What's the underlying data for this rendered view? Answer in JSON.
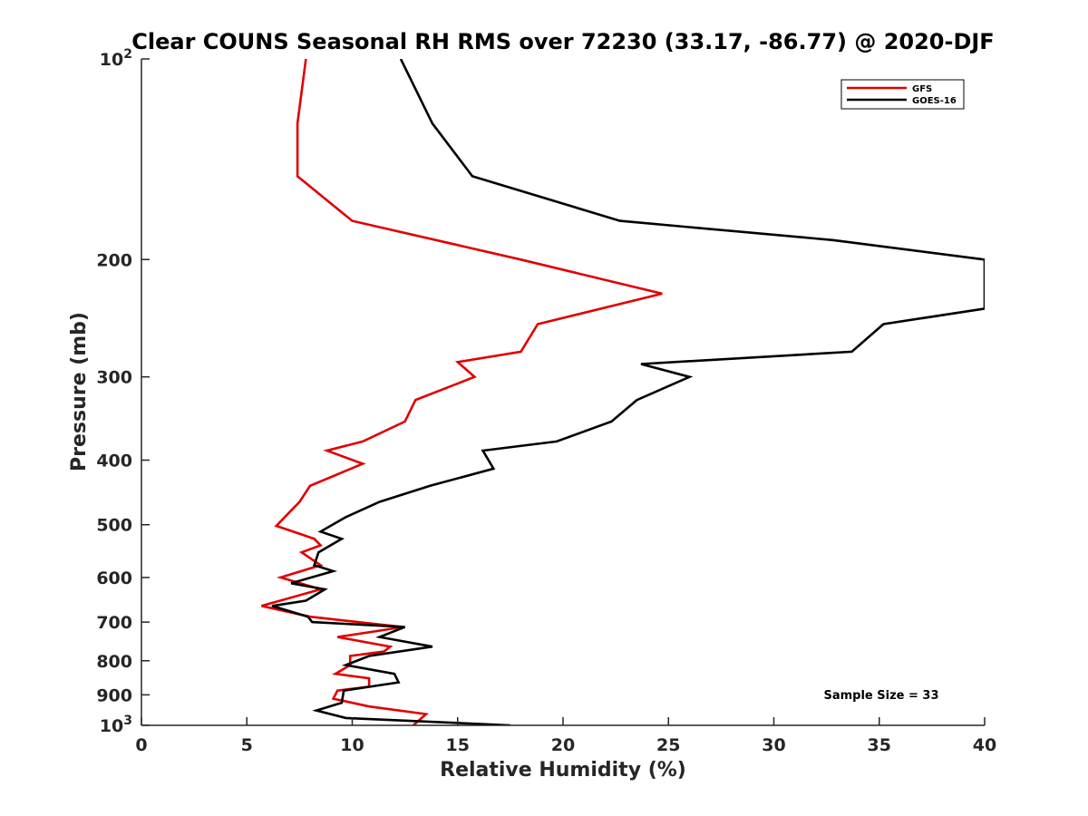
{
  "chart_data": {
    "type": "line",
    "title": "Clear COUNS Seasonal RH RMS over 72230 (33.17, -86.77) @ 2020-DJF",
    "xlabel": "Relative Humidity (%)",
    "ylabel": "Pressure (mb)",
    "xlim": [
      0,
      40
    ],
    "ylim": [
      100,
      1000
    ],
    "yscale": "log",
    "yreversed": true,
    "xticks": [
      "0",
      "5",
      "10",
      "15",
      "20",
      "25",
      "30",
      "35",
      "40"
    ],
    "yticks": [
      {
        "value": 100,
        "base": "10",
        "exp": "2"
      },
      {
        "value": 200,
        "label": "200"
      },
      {
        "value": 300,
        "label": "300"
      },
      {
        "value": 400,
        "label": "400"
      },
      {
        "value": 500,
        "label": "500"
      },
      {
        "value": 600,
        "label": "600"
      },
      {
        "value": 700,
        "label": "700"
      },
      {
        "value": 800,
        "label": "800"
      },
      {
        "value": 900,
        "label": "900"
      },
      {
        "value": 1000,
        "base": "10",
        "exp": "3"
      }
    ],
    "legend_position": "top-right",
    "annotation": "Sample Size = 33",
    "series": [
      {
        "name": "GFS",
        "color": "#e00000",
        "points": [
          [
            7.8,
            100
          ],
          [
            7.4,
            125
          ],
          [
            7.4,
            150
          ],
          [
            10.0,
            175
          ],
          [
            18.0,
            200
          ],
          [
            24.7,
            225
          ],
          [
            18.8,
            250
          ],
          [
            18.0,
            275
          ],
          [
            15.0,
            285
          ],
          [
            15.8,
            300
          ],
          [
            13.0,
            325
          ],
          [
            12.5,
            350
          ],
          [
            10.5,
            375
          ],
          [
            8.8,
            387
          ],
          [
            10.5,
            405
          ],
          [
            8.0,
            437
          ],
          [
            7.5,
            462
          ],
          [
            6.8,
            487
          ],
          [
            6.4,
            502
          ],
          [
            8.2,
            525
          ],
          [
            8.5,
            537
          ],
          [
            7.6,
            550
          ],
          [
            8.5,
            575
          ],
          [
            6.6,
            600
          ],
          [
            8.5,
            625
          ],
          [
            5.7,
            662
          ],
          [
            8.0,
            687
          ],
          [
            12.4,
            712
          ],
          [
            9.3,
            737
          ],
          [
            11.8,
            762
          ],
          [
            11.5,
            775
          ],
          [
            9.9,
            787
          ],
          [
            9.9,
            812
          ],
          [
            9.2,
            837
          ],
          [
            10.8,
            850
          ],
          [
            10.8,
            875
          ],
          [
            9.3,
            887
          ],
          [
            9.1,
            912
          ],
          [
            10.8,
            937
          ],
          [
            13.5,
            962
          ],
          [
            12.9,
            1000
          ]
        ]
      },
      {
        "name": "GOES-16",
        "color": "#000000",
        "points": [
          [
            12.3,
            100
          ],
          [
            13.8,
            125
          ],
          [
            15.7,
            150
          ],
          [
            22.7,
            175
          ],
          [
            32.8,
            187
          ],
          [
            40.0,
            200
          ],
          [
            40.0,
            237
          ],
          [
            35.2,
            250
          ],
          [
            33.7,
            275
          ],
          [
            23.7,
            287
          ],
          [
            26.0,
            300
          ],
          [
            23.5,
            325
          ],
          [
            22.3,
            350
          ],
          [
            19.7,
            375
          ],
          [
            16.2,
            387
          ],
          [
            16.7,
            412
          ],
          [
            13.7,
            437
          ],
          [
            11.3,
            462
          ],
          [
            9.7,
            487
          ],
          [
            8.5,
            512
          ],
          [
            9.5,
            525
          ],
          [
            8.4,
            550
          ],
          [
            8.2,
            575
          ],
          [
            9.1,
            587
          ],
          [
            7.1,
            612
          ],
          [
            8.7,
            625
          ],
          [
            7.8,
            650
          ],
          [
            6.2,
            662
          ],
          [
            7.9,
            687
          ],
          [
            8.1,
            700
          ],
          [
            12.5,
            712
          ],
          [
            11.3,
            737
          ],
          [
            13.8,
            762
          ],
          [
            10.8,
            787
          ],
          [
            9.7,
            812
          ],
          [
            12.0,
            837
          ],
          [
            12.2,
            862
          ],
          [
            9.6,
            887
          ],
          [
            9.5,
            925
          ],
          [
            8.3,
            950
          ],
          [
            9.7,
            975
          ],
          [
            17.5,
            1000
          ]
        ]
      }
    ]
  }
}
